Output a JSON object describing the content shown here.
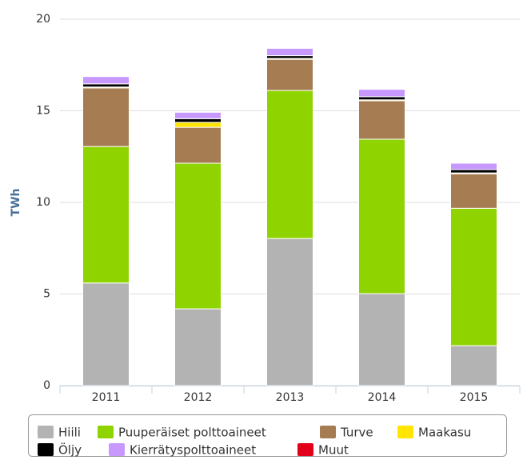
{
  "chart_data": {
    "type": "stacked_bar",
    "y_label": "TWh",
    "categories": [
      "2011",
      "2012",
      "2013",
      "2014",
      "2015"
    ],
    "series": [
      {
        "name": "Hiili",
        "color": "#b3b3b3",
        "values": [
          5.6,
          4.19,
          8.03,
          5.02,
          2.18
        ]
      },
      {
        "name": "Puuperäiset polttoaineet",
        "color": "#8fd400",
        "values": [
          7.45,
          7.95,
          8.08,
          8.43,
          7.5
        ]
      },
      {
        "name": "Turve",
        "color": "#a67c52",
        "values": [
          3.2,
          1.96,
          1.7,
          2.1,
          1.88
        ]
      },
      {
        "name": "Maakasu",
        "color": "#ffe500",
        "values": [
          0.05,
          0.27,
          0.05,
          0.05,
          0.05
        ]
      },
      {
        "name": "Öljy",
        "color": "#000000",
        "values": [
          0.17,
          0.2,
          0.15,
          0.17,
          0.18
        ]
      },
      {
        "name": "Kierrätyspolttoaineet",
        "color": "#c799ff",
        "values": [
          0.4,
          0.35,
          0.4,
          0.4,
          0.35
        ]
      },
      {
        "name": "Muut",
        "color": "#e2001a",
        "values": [
          0,
          0,
          0,
          0,
          0
        ]
      }
    ],
    "ylim": [
      0,
      20
    ],
    "yticks": [
      0,
      5,
      10,
      15,
      20
    ],
    "grid": true,
    "legend": "bottom"
  }
}
